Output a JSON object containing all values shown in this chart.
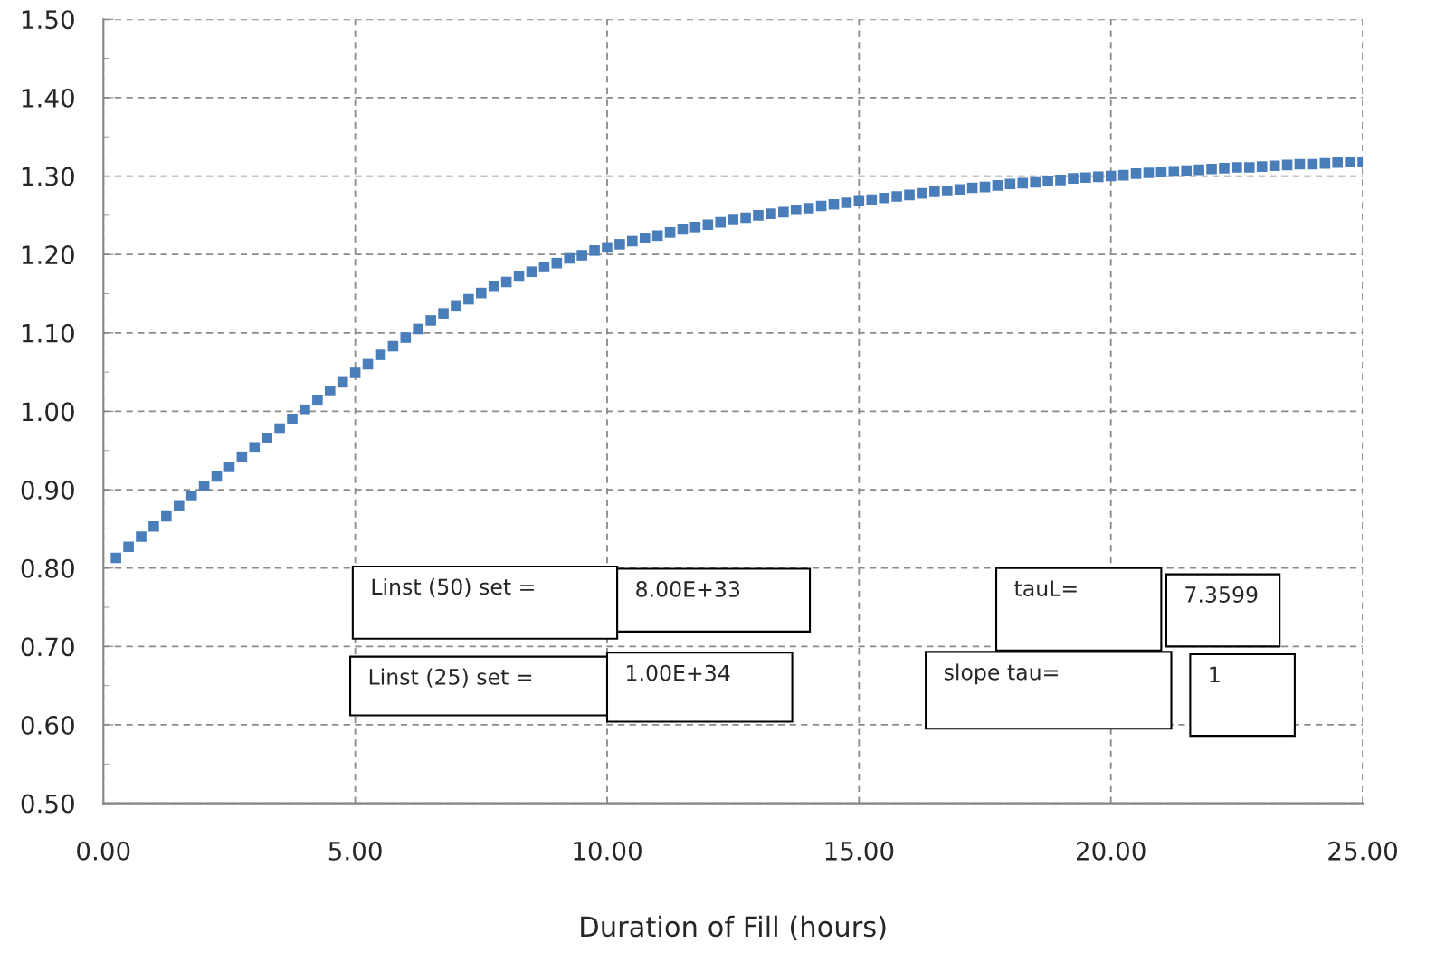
{
  "chart_data": {
    "type": "scatter",
    "xlabel": "Duration of Fill (hours)",
    "x": [
      0.25,
      0.5,
      0.75,
      1.0,
      1.25,
      1.5,
      1.75,
      2.0,
      2.25,
      2.5,
      2.75,
      3.0,
      3.25,
      3.5,
      3.75,
      4.0,
      4.25,
      4.5,
      4.75,
      5.0,
      5.25,
      5.5,
      5.75,
      6.0,
      6.25,
      6.5,
      6.75,
      7.0,
      7.25,
      7.5,
      7.75,
      8.0,
      8.25,
      8.5,
      8.75,
      9.0,
      9.25,
      9.5,
      9.75,
      10.0,
      10.25,
      10.5,
      10.75,
      11.0,
      11.25,
      11.5,
      11.75,
      12.0,
      12.25,
      12.5,
      12.75,
      13.0,
      13.25,
      13.5,
      13.75,
      14.0,
      14.25,
      14.5,
      14.75,
      15.0,
      15.25,
      15.5,
      15.75,
      16.0,
      16.25,
      16.5,
      16.75,
      17.0,
      17.25,
      17.5,
      17.75,
      18.0,
      18.25,
      18.5,
      18.75,
      19.0,
      19.25,
      19.5,
      19.75,
      20.0,
      20.25,
      20.5,
      20.75,
      21.0,
      21.25,
      21.5,
      21.75,
      22.0,
      22.25,
      22.5,
      22.75,
      23.0,
      23.25,
      23.5,
      23.75,
      24.0,
      24.25,
      24.5,
      24.75,
      25.0
    ],
    "series": [
      {
        "color": "#4a7ebb",
        "values": [
          0.813,
          0.827,
          0.84,
          0.853,
          0.866,
          0.879,
          0.892,
          0.905,
          0.917,
          0.929,
          0.942,
          0.954,
          0.966,
          0.978,
          0.99,
          1.002,
          1.014,
          1.026,
          1.037,
          1.049,
          1.06,
          1.072,
          1.083,
          1.094,
          1.105,
          1.116,
          1.125,
          1.134,
          1.143,
          1.151,
          1.159,
          1.165,
          1.172,
          1.178,
          1.184,
          1.189,
          1.195,
          1.199,
          1.205,
          1.209,
          1.213,
          1.217,
          1.221,
          1.224,
          1.228,
          1.232,
          1.235,
          1.238,
          1.241,
          1.244,
          1.247,
          1.25,
          1.252,
          1.254,
          1.257,
          1.259,
          1.262,
          1.264,
          1.266,
          1.268,
          1.27,
          1.272,
          1.274,
          1.276,
          1.278,
          1.28,
          1.281,
          1.283,
          1.285,
          1.286,
          1.288,
          1.29,
          1.291,
          1.292,
          1.294,
          1.295,
          1.297,
          1.298,
          1.299,
          1.3,
          1.301,
          1.303,
          1.304,
          1.305,
          1.306,
          1.307,
          1.308,
          1.309,
          1.31,
          1.311,
          1.311,
          1.312,
          1.313,
          1.314,
          1.315,
          1.315,
          1.316,
          1.317,
          1.318,
          1.318
        ]
      }
    ],
    "xlim": [
      0,
      25
    ],
    "ylim": [
      0.5,
      1.5
    ],
    "xticks": [
      {
        "value": 0,
        "label": "0.00"
      },
      {
        "value": 5,
        "label": "5.00"
      },
      {
        "value": 10,
        "label": "10.00"
      },
      {
        "value": 15,
        "label": "15.00"
      },
      {
        "value": 20,
        "label": "20.00"
      },
      {
        "value": 25,
        "label": "25.00"
      }
    ],
    "yticks": [
      {
        "value": 0.5,
        "label": "0.50"
      },
      {
        "value": 0.6,
        "label": "0.60"
      },
      {
        "value": 0.7,
        "label": "0.70"
      },
      {
        "value": 0.8,
        "label": "0.80"
      },
      {
        "value": 0.9,
        "label": "0.90"
      },
      {
        "value": 1.0,
        "label": "1.00"
      },
      {
        "value": 1.1,
        "label": "1.10"
      },
      {
        "value": 1.2,
        "label": "1.20"
      },
      {
        "value": 1.3,
        "label": "1.30"
      },
      {
        "value": 1.4,
        "label": "1.40"
      },
      {
        "value": 1.5,
        "label": "1.50"
      }
    ],
    "grid": true,
    "marker": "square",
    "legend": false,
    "annotations": [
      "Linst (50) set =",
      "8.00E+33",
      "Linst (25) set =",
      "1.00E+34",
      "tauL=",
      "7.3599",
      "slope tau=",
      "1"
    ]
  }
}
